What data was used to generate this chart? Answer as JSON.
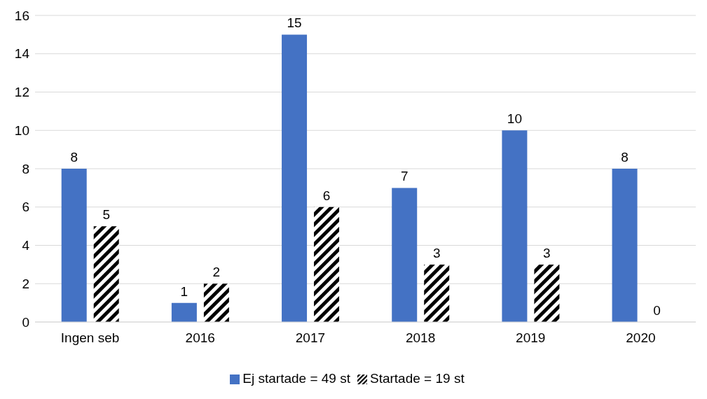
{
  "chart_data": {
    "type": "bar",
    "categories": [
      "Ingen seb",
      "2016",
      "2017",
      "2018",
      "2019",
      "2020"
    ],
    "series": [
      {
        "name": "Ej startade = 49 st",
        "color": "#4472c4",
        "values": [
          8,
          1,
          15,
          7,
          10,
          8
        ]
      },
      {
        "name": "Startade = 19 st",
        "color": "#000000",
        "values": [
          5,
          2,
          6,
          3,
          3,
          0
        ]
      }
    ],
    "ylim": [
      0,
      16
    ],
    "yticks": [
      0,
      2,
      4,
      6,
      8,
      10,
      12,
      14,
      16
    ],
    "grid": "y",
    "legend": "bottom",
    "data_labels": true
  }
}
